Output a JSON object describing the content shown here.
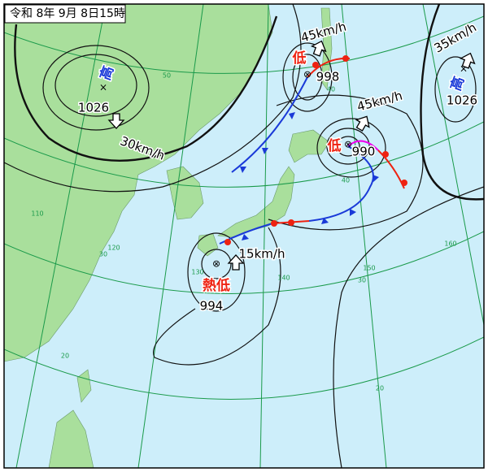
{
  "header": {
    "title": "令和 8年 9月 8日15時"
  },
  "systems": [
    {
      "kind": "高",
      "pressure": 1026,
      "speed": "30km/h"
    },
    {
      "kind": "低",
      "pressure": 998,
      "speed": "45km/h"
    },
    {
      "kind": "低",
      "pressure": 990,
      "speed": "45km/h"
    },
    {
      "kind": "高",
      "pressure": 1026,
      "speed": "35km/h"
    },
    {
      "kind": "熱低",
      "pressure": 994,
      "speed": "15km/h"
    }
  ],
  "grid_labels": [
    "50",
    "40",
    "30",
    "20",
    "110",
    "120",
    "130",
    "140",
    "150",
    "160",
    "40",
    "30",
    "20"
  ]
}
